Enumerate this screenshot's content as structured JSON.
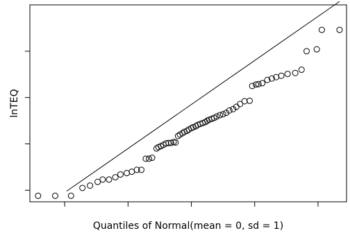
{
  "chart_data": {
    "type": "scatter",
    "title": "",
    "xlabel": "Quantiles of Normal(mean = 0, sd = 1)",
    "ylabel": "lnTEQ",
    "xlim": [
      -2.55,
      2.45
    ],
    "ylim": [
      -2.25,
      2.0
    ],
    "xticks": [
      -2,
      -1,
      0,
      1,
      2
    ],
    "yticks": [
      -2,
      -1,
      0,
      1
    ],
    "grid": false,
    "legend": "none",
    "reference_line": {
      "slope": 0.95,
      "intercept": -0.15
    },
    "marker": "open-circle",
    "points": [
      {
        "x": -2.42,
        "y": -2.12
      },
      {
        "x": -2.15,
        "y": -2.12
      },
      {
        "x": -1.9,
        "y": -2.12
      },
      {
        "x": -1.72,
        "y": -1.95
      },
      {
        "x": -1.6,
        "y": -1.9
      },
      {
        "x": -1.48,
        "y": -1.82
      },
      {
        "x": -1.4,
        "y": -1.77
      },
      {
        "x": -1.3,
        "y": -1.77
      },
      {
        "x": -1.2,
        "y": -1.72
      },
      {
        "x": -1.12,
        "y": -1.66
      },
      {
        "x": -1.02,
        "y": -1.63
      },
      {
        "x": -0.94,
        "y": -1.6
      },
      {
        "x": -0.86,
        "y": -1.56
      },
      {
        "x": -0.79,
        "y": -1.56
      },
      {
        "x": -0.72,
        "y": -1.32
      },
      {
        "x": -0.67,
        "y": -1.32
      },
      {
        "x": -0.62,
        "y": -1.3
      },
      {
        "x": -0.55,
        "y": -1.1
      },
      {
        "x": -0.52,
        "y": -1.07
      },
      {
        "x": -0.48,
        "y": -1.05
      },
      {
        "x": -0.44,
        "y": -1.02
      },
      {
        "x": -0.4,
        "y": -0.99
      },
      {
        "x": -0.36,
        "y": -0.98
      },
      {
        "x": -0.32,
        "y": -0.98
      },
      {
        "x": -0.28,
        "y": -0.96
      },
      {
        "x": -0.25,
        "y": -0.97
      },
      {
        "x": -0.21,
        "y": -0.83
      },
      {
        "x": -0.18,
        "y": -0.8
      },
      {
        "x": -0.14,
        "y": -0.77
      },
      {
        "x": -0.11,
        "y": -0.74
      },
      {
        "x": -0.07,
        "y": -0.72
      },
      {
        "x": -0.04,
        "y": -0.69
      },
      {
        "x": 0.0,
        "y": -0.66
      },
      {
        "x": 0.03,
        "y": -0.64
      },
      {
        "x": 0.07,
        "y": -0.62
      },
      {
        "x": 0.1,
        "y": -0.59
      },
      {
        "x": 0.14,
        "y": -0.57
      },
      {
        "x": 0.18,
        "y": -0.55
      },
      {
        "x": 0.22,
        "y": -0.53
      },
      {
        "x": 0.25,
        "y": -0.5
      },
      {
        "x": 0.28,
        "y": -0.48
      },
      {
        "x": 0.32,
        "y": -0.46
      },
      {
        "x": 0.36,
        "y": -0.44
      },
      {
        "x": 0.4,
        "y": -0.41
      },
      {
        "x": 0.45,
        "y": -0.38
      },
      {
        "x": 0.5,
        "y": -0.36
      },
      {
        "x": 0.55,
        "y": -0.33
      },
      {
        "x": 0.6,
        "y": -0.28
      },
      {
        "x": 0.66,
        "y": -0.25
      },
      {
        "x": 0.71,
        "y": -0.2
      },
      {
        "x": 0.77,
        "y": -0.14
      },
      {
        "x": 0.84,
        "y": -0.08
      },
      {
        "x": 0.92,
        "y": -0.07
      },
      {
        "x": 0.96,
        "y": 0.25
      },
      {
        "x": 1.02,
        "y": 0.28
      },
      {
        "x": 1.06,
        "y": 0.29
      },
      {
        "x": 1.12,
        "y": 0.31
      },
      {
        "x": 1.2,
        "y": 0.38
      },
      {
        "x": 1.27,
        "y": 0.41
      },
      {
        "x": 1.34,
        "y": 0.44
      },
      {
        "x": 1.42,
        "y": 0.47
      },
      {
        "x": 1.52,
        "y": 0.51
      },
      {
        "x": 1.64,
        "y": 0.53
      },
      {
        "x": 1.74,
        "y": 0.6
      },
      {
        "x": 1.82,
        "y": 1.0
      },
      {
        "x": 1.98,
        "y": 1.04
      },
      {
        "x": 2.06,
        "y": 1.46
      },
      {
        "x": 2.34,
        "y": 1.46
      }
    ]
  }
}
